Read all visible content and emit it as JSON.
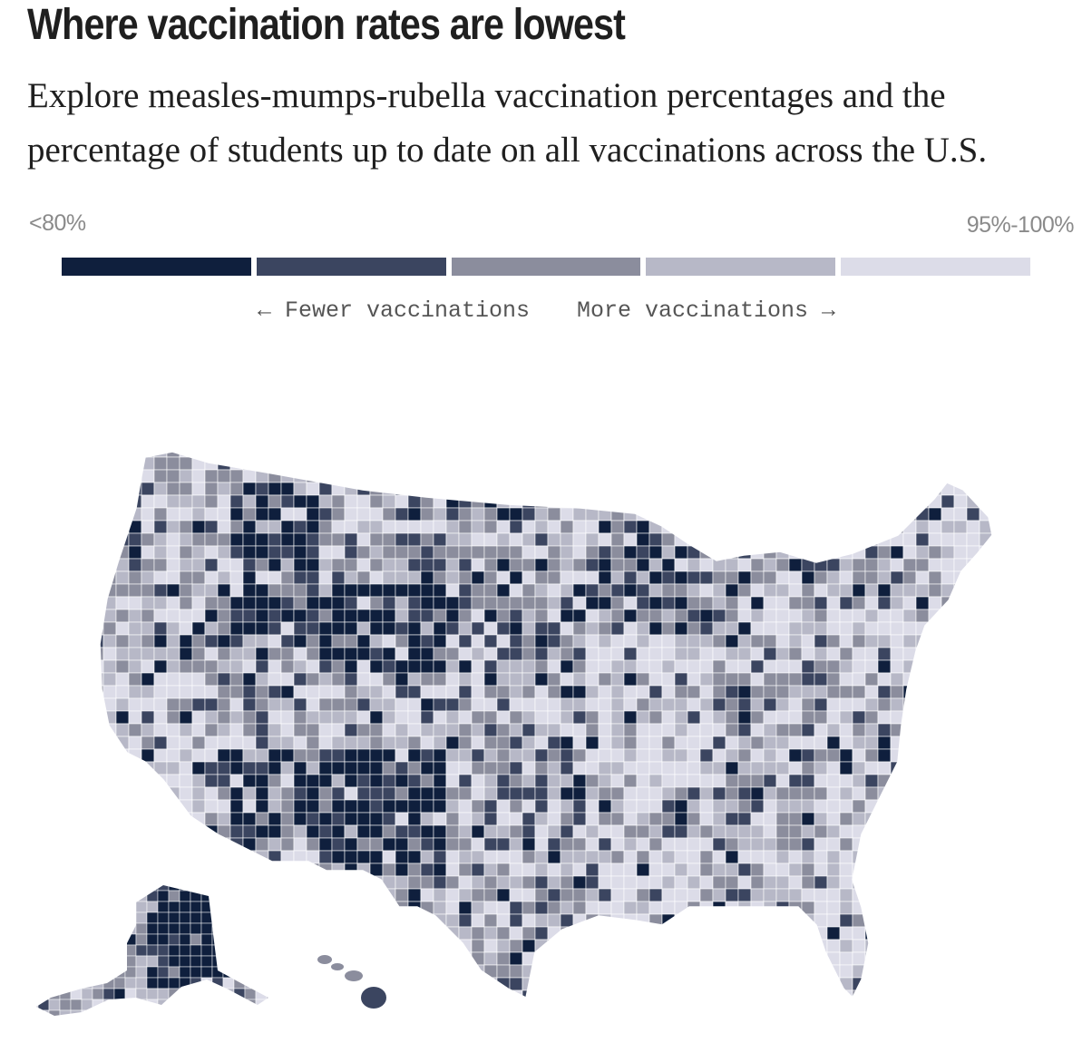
{
  "header": {
    "title": "Where vaccination rates are lowest",
    "subtitle": "Explore measles-mumps-rubella vaccination percentages and the percentage of students up to date on all vaccinations across the U.S."
  },
  "legend": {
    "min_label": "<80%",
    "max_label": "95%-100%",
    "fewer_label": "← Fewer vaccinations",
    "more_label": "More vaccinations →",
    "bins": [
      {
        "color": "#0f1f3d"
      },
      {
        "color": "#3b4560"
      },
      {
        "color": "#8b8d9d"
      },
      {
        "color": "#b7b8c7"
      },
      {
        "color": "#dcdce8"
      }
    ]
  },
  "map": {
    "regions": [
      {
        "name": "lower48"
      },
      {
        "name": "alaska"
      },
      {
        "name": "hawaii"
      }
    ]
  }
}
